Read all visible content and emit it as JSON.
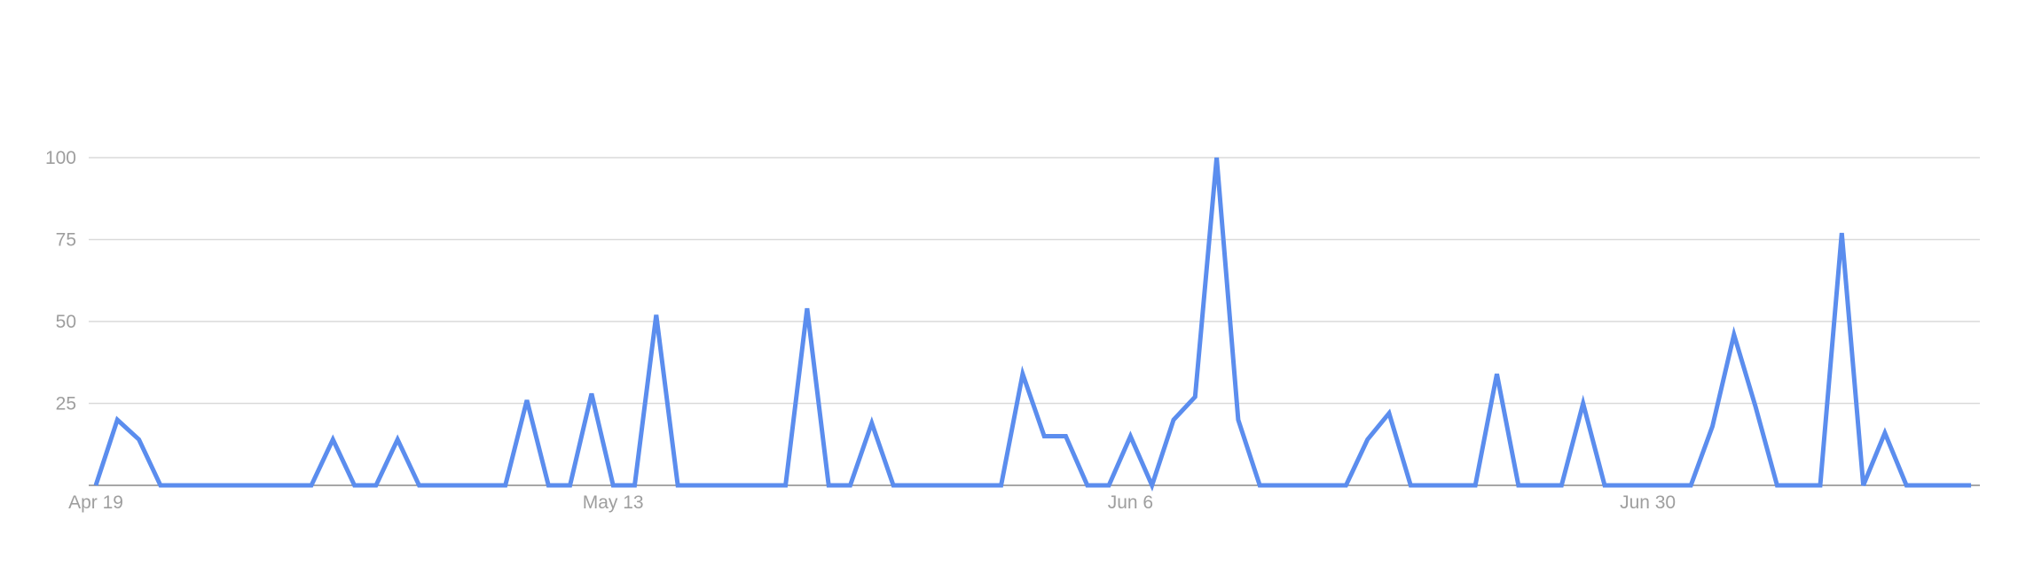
{
  "chart_data": {
    "type": "line",
    "title": "",
    "xlabel": "",
    "ylabel": "",
    "ylim": [
      0,
      100
    ],
    "y_ticks": [
      "25",
      "50",
      "75",
      "100"
    ],
    "x_tick_labels": [
      {
        "label": "Apr 19",
        "index": 0
      },
      {
        "label": "May 13",
        "index": 24
      },
      {
        "label": "Jun 6",
        "index": 48
      },
      {
        "label": "Jun 30",
        "index": 72
      }
    ],
    "grid": true,
    "legend": "none",
    "series": [
      {
        "color": "#5b8dee",
        "values": [
          0,
          20,
          14,
          0,
          0,
          0,
          0,
          0,
          0,
          0,
          0,
          14,
          0,
          0,
          14,
          0,
          0,
          0,
          0,
          0,
          26,
          0,
          0,
          28,
          0,
          0,
          52,
          0,
          0,
          0,
          0,
          0,
          0,
          54,
          0,
          0,
          19,
          0,
          0,
          0,
          0,
          0,
          0,
          34,
          15,
          15,
          0,
          0,
          15,
          0,
          20,
          27,
          100,
          20,
          0,
          0,
          0,
          0,
          0,
          14,
          22,
          0,
          0,
          0,
          0,
          34,
          0,
          0,
          0,
          25,
          0,
          0,
          0,
          0,
          0,
          18,
          46,
          24,
          0,
          0,
          0,
          77,
          0,
          16,
          0,
          0,
          0,
          0
        ]
      }
    ]
  }
}
